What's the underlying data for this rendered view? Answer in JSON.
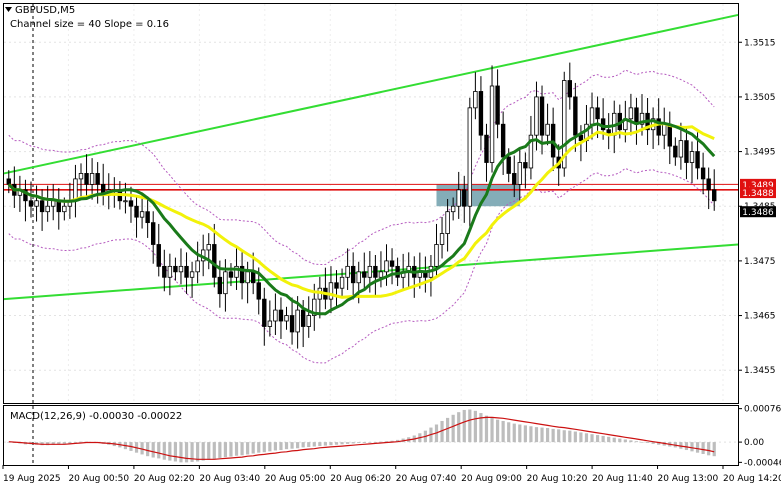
{
  "header": {
    "symbol": "GBPUSD,M5",
    "indicator": "Channel size = 40 Slope = 0.16"
  },
  "icons": {
    "symbol_marker": "triangle-down-icon"
  },
  "macd": {
    "label": "MACD(12,26,9) -0.00030 -0.00022"
  },
  "price_labels": {
    "upper_red": "1.3489",
    "lower_red": "1.3488",
    "current": "1.3486"
  },
  "colors": {
    "bull_candle": "#000000",
    "bear_candle": "#000000",
    "channel": "#33dd33",
    "ma_slow": "#1a7a1a",
    "ma_fast": "#f2f20a",
    "envelope": "#b65cc0",
    "level_red": "#e01010",
    "zone": "#6f9fab",
    "macd_hist": "#bdbdbd",
    "macd_signal": "#cc1111"
  },
  "chart_data": [
    {
      "type": "candlestick",
      "title": "GBPUSD,M5",
      "ylim": [
        1.3449,
        1.3522
      ],
      "y_ticks": [
        1.3515,
        1.3505,
        1.3495,
        1.3485,
        1.3475,
        1.3465,
        1.3455
      ],
      "y_tick_labels": [
        "1.3515",
        "1.3505",
        "1.3495",
        "1.3485",
        "1.3475",
        "1.3465",
        "1.3455"
      ],
      "x_labels": [
        "19 Aug 2025",
        "20 Aug 00:50",
        "20 Aug 02:20",
        "20 Aug 03:40",
        "20 Aug 05:00",
        "20 Aug 06:20",
        "20 Aug 07:40",
        "20 Aug 09:00",
        "20 Aug 10:20",
        "20 Aug 11:40",
        "20 Aug 13:00",
        "20 Aug 14:20"
      ],
      "close": [
        1.3489,
        1.3487,
        1.3488,
        1.3486,
        1.3485,
        1.3486,
        1.3484,
        1.3485,
        1.3486,
        1.3484,
        1.3485,
        1.3486,
        1.349,
        1.3491,
        1.3489,
        1.3491,
        1.3489,
        1.3487,
        1.3488,
        1.3488,
        1.3486,
        1.3486,
        1.3485,
        1.3483,
        1.3484,
        1.3482,
        1.3478,
        1.3474,
        1.3472,
        1.3474,
        1.3473,
        1.3474,
        1.3472,
        1.3473,
        1.3475,
        1.3477,
        1.3478,
        1.3472,
        1.3469,
        1.3473,
        1.3472,
        1.3474,
        1.3471,
        1.3473,
        1.3471,
        1.3468,
        1.3463,
        1.3464,
        1.3466,
        1.3464,
        1.3465,
        1.3462,
        1.3466,
        1.3463,
        1.3465,
        1.3468,
        1.347,
        1.3468,
        1.3471,
        1.347,
        1.3472,
        1.3474,
        1.3471,
        1.3473,
        1.3472,
        1.3474,
        1.3472,
        1.3473,
        1.3475,
        1.3474,
        1.3472,
        1.3473,
        1.3474,
        1.3472,
        1.3473,
        1.3472,
        1.3474,
        1.3478,
        1.348,
        1.3484,
        1.3485,
        1.3488,
        1.3485,
        1.3503,
        1.3506,
        1.3498,
        1.3493,
        1.3507,
        1.35,
        1.3494,
        1.3491,
        1.3489,
        1.3493,
        1.3492,
        1.3498,
        1.3505,
        1.3498,
        1.35,
        1.3494,
        1.3492,
        1.3508,
        1.3505,
        1.3498,
        1.3497,
        1.35,
        1.3503,
        1.3501,
        1.3499,
        1.3498,
        1.3502,
        1.3499,
        1.3501,
        1.3503,
        1.35,
        1.3502,
        1.3499,
        1.3501,
        1.3498,
        1.35,
        1.3496,
        1.3494,
        1.3497,
        1.3493,
        1.3495,
        1.3492,
        1.349,
        1.3488,
        1.3486
      ],
      "high_offset": 0.0004,
      "low_offset": 0.0004,
      "channel_upper": [
        [
          0,
          1.3491
        ],
        [
          1,
          1.352
        ]
      ],
      "channel_lower": [
        [
          0,
          1.3468
        ],
        [
          1,
          1.3478
        ]
      ],
      "levels": [
        1.3489,
        1.3488,
        1.3486
      ],
      "zone": {
        "from_index": 77,
        "to_index": 92,
        "high": 1.3489,
        "low": 1.3485
      },
      "series": [
        {
          "name": "",
          "kind": "ma_slow"
        },
        {
          "name": "",
          "kind": "ma_fast"
        },
        {
          "name": "",
          "kind": "envelope_upper"
        },
        {
          "name": "",
          "kind": "envelope_lower"
        }
      ]
    },
    {
      "type": "bar",
      "title": "MACD(12,26,9)",
      "ylim": [
        -0.00052,
        0.00082
      ],
      "y_ticks": [
        0.00076,
        0.0,
        -0.00046
      ],
      "y_tick_labels": [
        "0.00076",
        "0.00",
        "-0.00046"
      ],
      "values": [
        0.0,
        -2e-05,
        -3e-05,
        -5e-05,
        -5e-05,
        -6e-05,
        -7e-05,
        -7e-05,
        -6e-05,
        -5e-05,
        -4e-05,
        -3e-05,
        -1e-05,
        1e-05,
        1e-05,
        0.0,
        -2e-05,
        -4e-05,
        -6e-05,
        -9e-05,
        -0.00012,
        -0.00016,
        -0.0002,
        -0.00024,
        -0.00028,
        -0.00032,
        -0.00035,
        -0.00037,
        -0.0004,
        -0.00042,
        -0.00044,
        -0.00046,
        -0.00046,
        -0.00045,
        -0.00044,
        -0.00042,
        -0.0004,
        -0.00038,
        -0.00036,
        -0.00034,
        -0.00033,
        -0.00031,
        -0.0003,
        -0.00028,
        -0.00026,
        -0.00024,
        -0.00023,
        -0.00021,
        -0.00019,
        -0.00018,
        -0.00016,
        -0.00015,
        -0.00014,
        -0.00012,
        -0.00011,
        -0.0001,
        -9e-05,
        -8e-05,
        -7e-05,
        -6e-05,
        -5e-05,
        -4e-05,
        -3e-05,
        -2e-05,
        -2e-05,
        -1e-05,
        0.0,
        1e-05,
        2e-05,
        3e-05,
        5e-05,
        8e-05,
        0.00011,
        0.00015,
        0.0002,
        0.00026,
        0.00033,
        0.0004,
        0.00048,
        0.00055,
        0.00062,
        0.00068,
        0.00073,
        0.00074,
        0.00071,
        0.00066,
        0.0006,
        0.00055,
        0.00051,
        0.00048,
        0.00045,
        0.00042,
        0.0004,
        0.00038,
        0.00036,
        0.00034,
        0.00033,
        0.00032,
        0.0003,
        0.00029,
        0.00027,
        0.00026,
        0.00024,
        0.00022,
        0.0002,
        0.00018,
        0.00016,
        0.00014,
        0.00012,
        0.0001,
        8e-05,
        6e-05,
        4e-05,
        2e-05,
        0.0,
        -2e-05,
        -4e-05,
        -6e-05,
        -8e-05,
        -0.0001,
        -0.00012,
        -0.00015,
        -0.00018,
        -0.00021,
        -0.00024,
        -0.00027,
        -0.0003,
        -0.00032
      ],
      "signal": [
        1e-05,
        0.0,
        -1e-05,
        -2e-05,
        -3e-05,
        -4e-05,
        -5e-05,
        -5e-05,
        -5e-05,
        -5e-05,
        -5e-05,
        -4e-05,
        -3e-05,
        -2e-05,
        -1e-05,
        -1e-05,
        -1e-05,
        -2e-05,
        -3e-05,
        -4e-05,
        -6e-05,
        -8e-05,
        -0.0001,
        -0.00013,
        -0.00016,
        -0.00019,
        -0.00022,
        -0.00025,
        -0.00028,
        -0.00031,
        -0.00033,
        -0.00035,
        -0.00037,
        -0.00038,
        -0.00039,
        -0.00039,
        -0.00039,
        -0.00039,
        -0.00038,
        -0.00037,
        -0.00036,
        -0.00035,
        -0.00034,
        -0.00032,
        -0.00031,
        -0.00029,
        -0.00028,
        -0.00026,
        -0.00025,
        -0.00023,
        -0.00022,
        -0.0002,
        -0.00019,
        -0.00017,
        -0.00016,
        -0.00015,
        -0.00013,
        -0.00012,
        -0.00011,
        -0.0001,
        -9e-05,
        -8e-05,
        -7e-05,
        -6e-05,
        -5e-05,
        -4e-05,
        -3e-05,
        -2e-05,
        -1e-05,
        0.0,
        1e-05,
        3e-05,
        5e-05,
        7e-05,
        0.0001,
        0.00013,
        0.00017,
        0.00021,
        0.00026,
        0.00031,
        0.00036,
        0.00041,
        0.00046,
        0.0005,
        0.00053,
        0.00055,
        0.00056,
        0.00056,
        0.00055,
        0.00054,
        0.00052,
        0.0005,
        0.00048,
        0.00046,
        0.00044,
        0.00042,
        0.0004,
        0.00038,
        0.00036,
        0.00034,
        0.00033,
        0.00031,
        0.00029,
        0.00027,
        0.00025,
        0.00023,
        0.00021,
        0.00019,
        0.00017,
        0.00015,
        0.00013,
        0.00011,
        9e-05,
        7e-05,
        5e-05,
        3e-05,
        1e-05,
        -1e-05,
        -3e-05,
        -5e-05,
        -7e-05,
        -9e-05,
        -0.00011,
        -0.00013,
        -0.00015,
        -0.00017,
        -0.00019,
        -0.00022
      ]
    }
  ]
}
